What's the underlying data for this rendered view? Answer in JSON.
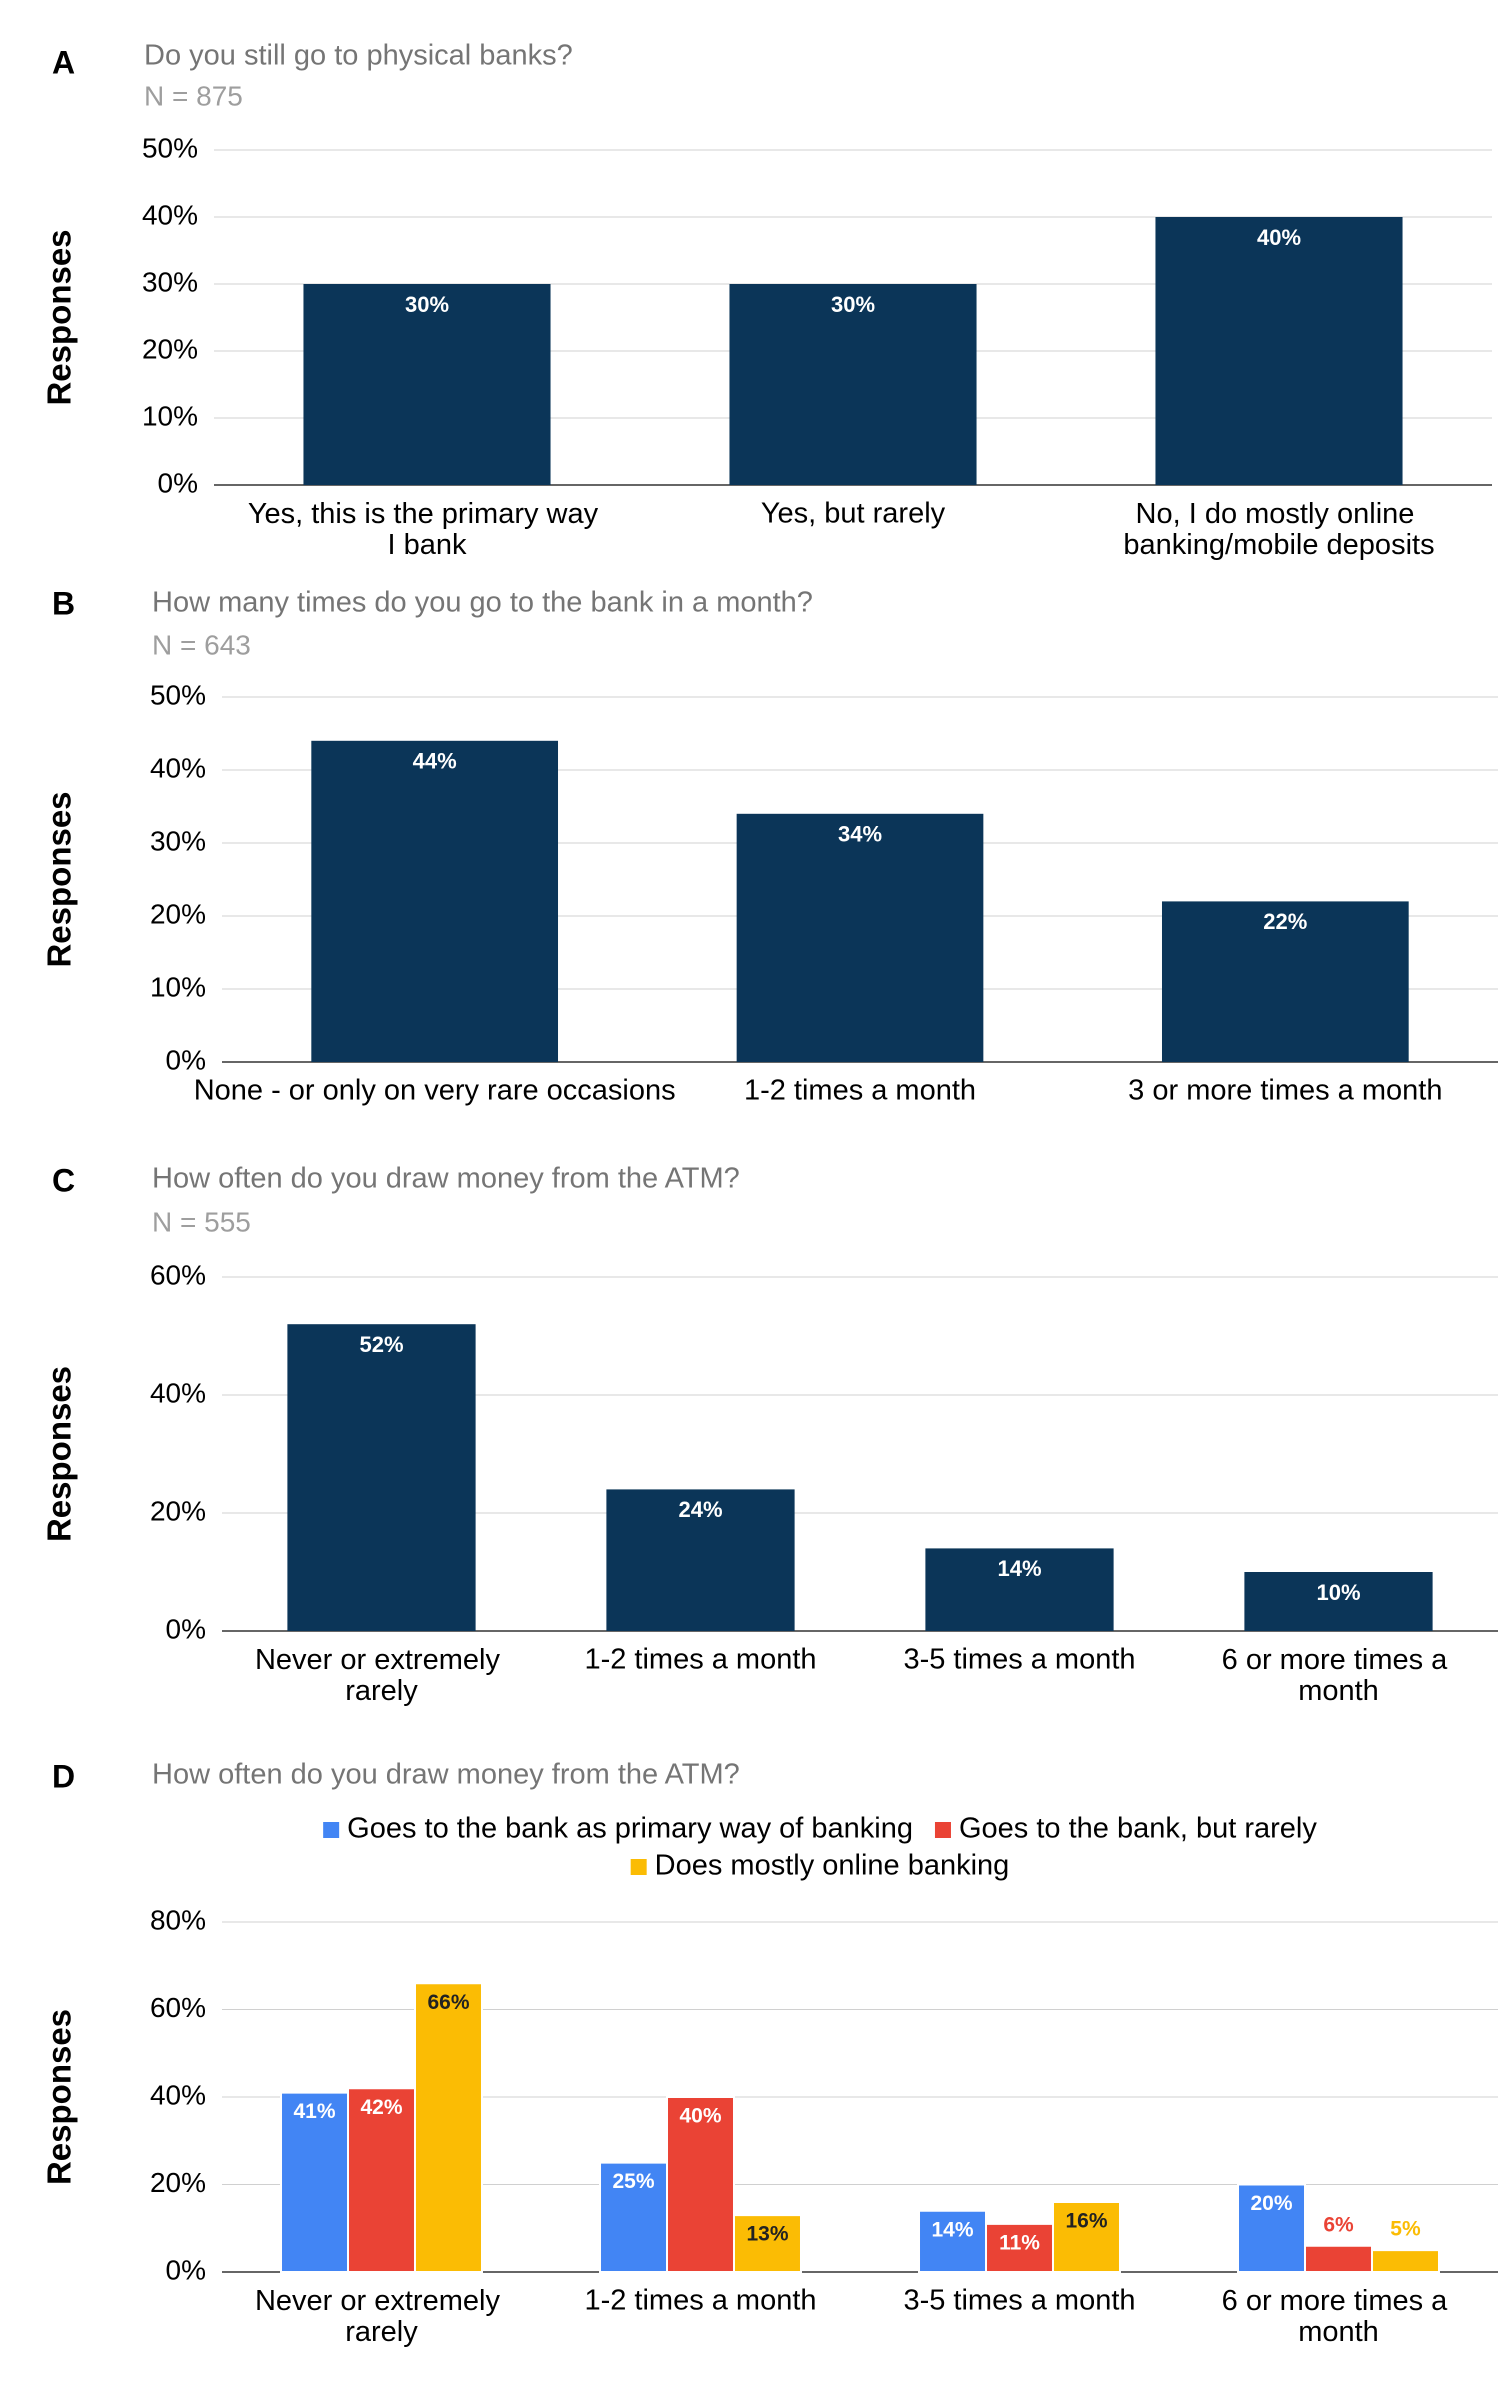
{
  "chart_data": [
    {
      "type": "bar",
      "panel": "A",
      "title": "Do you still go to physical banks?",
      "subtitle": "N = 875",
      "ylabel": "Responses",
      "categories": [
        "Yes, this is the primary way I bank",
        "Yes, but rarely",
        "No, I do mostly online banking/mobile deposits"
      ],
      "values": [
        30,
        30,
        40
      ],
      "value_labels": [
        "30%",
        "30%",
        "40%"
      ],
      "color": "#0b3558",
      "ylim": [
        0,
        50
      ],
      "yticks": [
        {
          "value": 0,
          "label": "0%"
        },
        {
          "value": 10,
          "label": "10%"
        },
        {
          "value": 20,
          "label": "20%"
        },
        {
          "value": 30,
          "label": "30%"
        },
        {
          "value": 40,
          "label": "40%"
        },
        {
          "value": 50,
          "label": "50%"
        }
      ],
      "grid": true
    },
    {
      "type": "bar",
      "panel": "B",
      "title": "How many times do you go to the bank in a month?",
      "subtitle": "N = 643",
      "ylabel": "Responses",
      "categories": [
        "None - or only on very rare occasions",
        "1-2 times a month",
        "3 or more times a month"
      ],
      "values": [
        44,
        34,
        22
      ],
      "value_labels": [
        "44%",
        "34%",
        "22%"
      ],
      "color": "#0b3558",
      "ylim": [
        0,
        50
      ],
      "yticks": [
        {
          "value": 0,
          "label": "0%"
        },
        {
          "value": 10,
          "label": "10%"
        },
        {
          "value": 20,
          "label": "20%"
        },
        {
          "value": 30,
          "label": "30%"
        },
        {
          "value": 40,
          "label": "40%"
        },
        {
          "value": 50,
          "label": "50%"
        }
      ],
      "grid": true
    },
    {
      "type": "bar",
      "panel": "C",
      "title": "How often do you draw money from the ATM?",
      "subtitle": "N = 555",
      "ylabel": "Responses",
      "categories": [
        "Never or extremely rarely",
        "1-2 times a month",
        "3-5 times a month",
        "6 or more times a month"
      ],
      "values": [
        52,
        24,
        14,
        10
      ],
      "value_labels": [
        "52%",
        "24%",
        "14%",
        "10%"
      ],
      "color": "#0b3558",
      "ylim": [
        0,
        60
      ],
      "yticks": [
        {
          "value": 0,
          "label": "0%"
        },
        {
          "value": 20,
          "label": "20%"
        },
        {
          "value": 40,
          "label": "40%"
        },
        {
          "value": 60,
          "label": "60%"
        }
      ],
      "grid": true
    },
    {
      "type": "grouped-bar",
      "panel": "D",
      "title": "How often do you draw money from the ATM?",
      "ylabel": "Responses",
      "categories": [
        "Never or extremely rarely",
        "1-2 times a month",
        "3-5 times a month",
        "6 or more times a month"
      ],
      "series": [
        {
          "name": "Goes to the bank as primary way of banking",
          "color": "#4285f4",
          "values": [
            41,
            25,
            14,
            20
          ],
          "value_labels": [
            "41%",
            "25%",
            "14%",
            "20%"
          ]
        },
        {
          "name": "Goes to the bank, but rarely",
          "color": "#ea4335",
          "values": [
            42,
            40,
            11,
            6
          ],
          "value_labels": [
            "42%",
            "40%",
            "11%",
            "6%"
          ]
        },
        {
          "name": "Does mostly online banking",
          "color": "#fbbc04",
          "values": [
            66,
            13,
            16,
            5
          ],
          "value_labels": [
            "66%",
            "13%",
            "16%",
            "5%"
          ]
        }
      ],
      "ylim": [
        0,
        80
      ],
      "yticks": [
        {
          "value": 0,
          "label": "0%"
        },
        {
          "value": 20,
          "label": "20%"
        },
        {
          "value": 40,
          "label": "40%"
        },
        {
          "value": 60,
          "label": "60%"
        },
        {
          "value": 80,
          "label": "80%"
        }
      ],
      "grid": true,
      "legend": "top"
    }
  ]
}
